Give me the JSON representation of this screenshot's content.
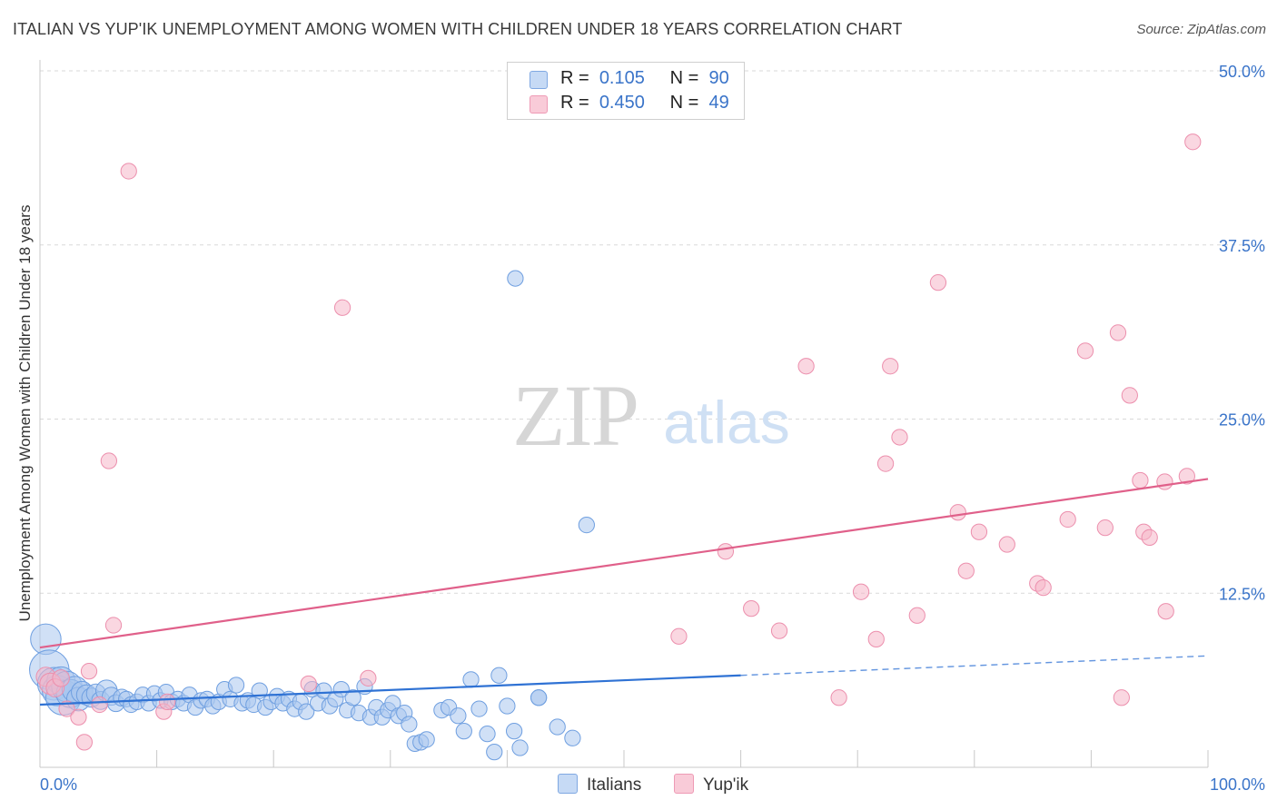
{
  "title": "ITALIAN VS YUP'IK UNEMPLOYMENT AMONG WOMEN WITH CHILDREN UNDER 18 YEARS CORRELATION CHART",
  "source": "Source: ZipAtlas.com",
  "watermark": {
    "zip": "ZIP",
    "atlas": "atlas"
  },
  "legend": {
    "rows": [
      {
        "r_label": "R =",
        "r_value": "0.105",
        "n_label": "N =",
        "n_value": "90"
      },
      {
        "r_label": "R =",
        "r_value": "0.450",
        "n_label": "N =",
        "n_value": "49"
      }
    ]
  },
  "bottom_legend": {
    "italians": "Italians",
    "yupik": "Yup'ik"
  },
  "colors": {
    "italians_fill": "#a9c6ef",
    "italians_stroke": "#6f9fe0",
    "italians_line": "#2f72d4",
    "yupik_fill": "#f6b7c9",
    "yupik_stroke": "#ec8fad",
    "yupik_line": "#e0608a",
    "tick_label": "#3a74c9",
    "grid": "#d9d9d9"
  },
  "chart_data": {
    "type": "scatter",
    "title": "ITALIAN VS YUP'IK UNEMPLOYMENT AMONG WOMEN WITH CHILDREN UNDER 18 YEARS CORRELATION CHART",
    "xlabel": "",
    "ylabel": "Unemployment Among Women with Children Under 18 years",
    "xlim": [
      0,
      100
    ],
    "ylim": [
      0,
      50
    ],
    "x_tick_labels": [
      "0.0%",
      "100.0%"
    ],
    "y_ticks": [
      12.5,
      25.0,
      37.5,
      50.0
    ],
    "y_tick_labels": [
      "12.5%",
      "25.0%",
      "37.5%",
      "50.0%"
    ],
    "grid": true,
    "legend_position": "top-center",
    "series": [
      {
        "name": "Italians",
        "r": 0.105,
        "n": 90,
        "trend": {
          "solid": [
            [
              0,
              4.5
            ],
            [
              60,
              6.6
            ]
          ],
          "dashed": [
            [
              60,
              6.6
            ],
            [
              100,
              8.0
            ]
          ]
        },
        "points": [
          [
            0.5,
            9.2,
            22
          ],
          [
            0.8,
            7.0,
            30
          ],
          [
            1.2,
            6.0,
            24
          ],
          [
            1.5,
            5.5,
            22
          ],
          [
            1.8,
            6.2,
            20
          ],
          [
            2.0,
            5.0,
            26
          ],
          [
            2.3,
            5.8,
            22
          ],
          [
            2.6,
            5.3,
            20
          ],
          [
            3.0,
            5.6,
            18
          ],
          [
            3.3,
            4.9,
            16
          ],
          [
            3.6,
            5.4,
            14
          ],
          [
            4.0,
            5.2,
            13
          ],
          [
            4.4,
            5.0,
            12
          ],
          [
            4.8,
            5.3,
            12
          ],
          [
            5.2,
            4.8,
            11
          ],
          [
            5.7,
            5.5,
            14
          ],
          [
            6.1,
            5.1,
            11
          ],
          [
            6.5,
            4.6,
            10
          ],
          [
            7.0,
            5.0,
            10
          ],
          [
            7.4,
            4.9,
            9
          ],
          [
            7.8,
            4.5,
            9
          ],
          [
            8.3,
            4.7,
            9
          ],
          [
            8.8,
            5.2,
            9
          ],
          [
            9.3,
            4.6,
            9
          ],
          [
            9.8,
            5.3,
            9
          ],
          [
            10.3,
            4.8,
            9
          ],
          [
            10.8,
            5.4,
            9
          ],
          [
            11.3,
            4.7,
            9
          ],
          [
            11.8,
            4.9,
            9
          ],
          [
            12.3,
            4.6,
            9
          ],
          [
            12.8,
            5.2,
            9
          ],
          [
            13.3,
            4.3,
            9
          ],
          [
            13.8,
            4.8,
            9
          ],
          [
            14.3,
            4.9,
            9
          ],
          [
            14.8,
            4.4,
            9
          ],
          [
            15.3,
            4.7,
            9
          ],
          [
            15.8,
            5.6,
            9
          ],
          [
            16.3,
            4.9,
            9
          ],
          [
            16.8,
            5.9,
            9
          ],
          [
            17.3,
            4.6,
            9
          ],
          [
            17.8,
            4.8,
            9
          ],
          [
            18.3,
            4.5,
            9
          ],
          [
            18.8,
            5.5,
            9
          ],
          [
            19.3,
            4.3,
            9
          ],
          [
            19.8,
            4.7,
            9
          ],
          [
            20.3,
            5.1,
            9
          ],
          [
            20.8,
            4.6,
            9
          ],
          [
            21.3,
            4.9,
            9
          ],
          [
            21.8,
            4.2,
            9
          ],
          [
            22.3,
            4.7,
            9
          ],
          [
            22.8,
            4.0,
            9
          ],
          [
            23.3,
            5.6,
            9
          ],
          [
            23.8,
            4.6,
            9
          ],
          [
            24.3,
            5.5,
            9
          ],
          [
            24.8,
            4.4,
            9
          ],
          [
            25.3,
            4.9,
            9
          ],
          [
            25.8,
            5.6,
            9
          ],
          [
            26.3,
            4.1,
            9
          ],
          [
            26.8,
            5.0,
            9
          ],
          [
            27.3,
            3.9,
            9
          ],
          [
            27.8,
            5.8,
            9
          ],
          [
            28.3,
            3.6,
            9
          ],
          [
            28.8,
            4.3,
            9
          ],
          [
            29.3,
            3.6,
            9
          ],
          [
            29.8,
            4.1,
            9
          ],
          [
            30.2,
            4.6,
            9
          ],
          [
            30.7,
            3.7,
            9
          ],
          [
            31.2,
            3.9,
            9
          ],
          [
            31.6,
            3.1,
            9
          ],
          [
            32.1,
            1.7,
            9
          ],
          [
            32.6,
            1.8,
            9
          ],
          [
            33.1,
            2.0,
            9
          ],
          [
            34.4,
            4.1,
            9
          ],
          [
            35.0,
            4.3,
            9
          ],
          [
            35.8,
            3.7,
            9
          ],
          [
            36.3,
            2.6,
            9
          ],
          [
            36.9,
            6.3,
            9
          ],
          [
            37.6,
            4.2,
            9
          ],
          [
            38.3,
            2.4,
            9
          ],
          [
            39.3,
            6.6,
            9
          ],
          [
            40.0,
            4.4,
            9
          ],
          [
            38.9,
            1.1,
            9
          ],
          [
            40.6,
            2.6,
            9
          ],
          [
            41.1,
            1.4,
            9
          ],
          [
            42.7,
            5.0,
            9
          ],
          [
            40.7,
            35.1,
            9
          ],
          [
            42.7,
            5.0,
            9
          ],
          [
            44.3,
            2.9,
            9
          ],
          [
            45.6,
            2.1,
            9
          ],
          [
            46.8,
            17.4,
            9
          ]
        ]
      },
      {
        "name": "Yup'ik",
        "r": 0.45,
        "n": 49,
        "trend": {
          "solid": [
            [
              0,
              8.6
            ],
            [
              100,
              20.7
            ]
          ]
        },
        "points": [
          [
            0.5,
            6.5,
            12
          ],
          [
            0.9,
            6.0,
            14
          ],
          [
            1.3,
            5.7,
            11
          ],
          [
            1.8,
            6.4,
            10
          ],
          [
            2.3,
            4.2,
            9
          ],
          [
            3.3,
            3.6,
            9
          ],
          [
            3.8,
            1.8,
            9
          ],
          [
            4.2,
            6.9,
            9
          ],
          [
            5.1,
            4.5,
            9
          ],
          [
            5.9,
            22.0,
            9
          ],
          [
            6.3,
            10.2,
            9
          ],
          [
            7.6,
            42.8,
            9
          ],
          [
            10.6,
            4.0,
            9
          ],
          [
            10.9,
            4.7,
            9
          ],
          [
            25.9,
            33.0,
            9
          ],
          [
            28.1,
            6.4,
            9
          ],
          [
            54.7,
            9.4,
            9
          ],
          [
            58.7,
            15.5,
            9
          ],
          [
            60.9,
            11.4,
            9
          ],
          [
            63.3,
            9.8,
            9
          ],
          [
            65.6,
            28.8,
            9
          ],
          [
            68.4,
            5.0,
            9
          ],
          [
            70.3,
            12.6,
            9
          ],
          [
            71.6,
            9.2,
            9
          ],
          [
            72.4,
            21.8,
            9
          ],
          [
            72.8,
            28.8,
            9
          ],
          [
            73.6,
            23.7,
            9
          ],
          [
            75.1,
            10.9,
            9
          ],
          [
            76.9,
            34.8,
            9
          ],
          [
            78.6,
            18.3,
            9
          ],
          [
            79.3,
            14.1,
            9
          ],
          [
            80.4,
            16.9,
            9
          ],
          [
            82.8,
            16.0,
            9
          ],
          [
            85.4,
            13.2,
            9
          ],
          [
            85.9,
            12.9,
            9
          ],
          [
            88.0,
            17.8,
            9
          ],
          [
            89.5,
            29.9,
            9
          ],
          [
            91.2,
            17.2,
            9
          ],
          [
            92.3,
            31.2,
            9
          ],
          [
            92.6,
            5.0,
            9
          ],
          [
            93.3,
            26.7,
            9
          ],
          [
            94.2,
            20.6,
            9
          ],
          [
            94.5,
            16.9,
            9
          ],
          [
            95.0,
            16.5,
            9
          ],
          [
            96.3,
            20.5,
            9
          ],
          [
            96.4,
            11.2,
            9
          ],
          [
            98.2,
            20.9,
            9
          ],
          [
            98.7,
            44.9,
            9
          ],
          [
            23.0,
            6.0,
            9
          ]
        ]
      }
    ]
  }
}
